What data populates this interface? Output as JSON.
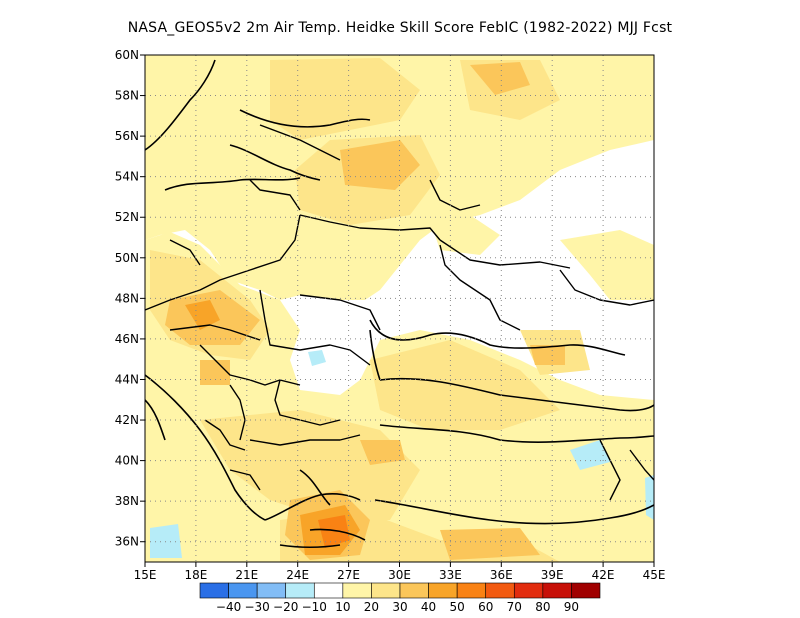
{
  "title": "NASA_GEOS5v2  2m Air Temp. Heidke Skill Score FebIC (1982-2022) MJJ Fcst",
  "map": {
    "lon_range": [
      15,
      45
    ],
    "lat_range": [
      35,
      60
    ],
    "x_ticks": [
      "15E",
      "18E",
      "21E",
      "24E",
      "27E",
      "30E",
      "33E",
      "36E",
      "39E",
      "42E",
      "45E"
    ],
    "y_ticks": [
      "36N",
      "38N",
      "40N",
      "42N",
      "44N",
      "46N",
      "48N",
      "50N",
      "52N",
      "54N",
      "56N",
      "58N",
      "60N"
    ],
    "grid": "dotted"
  },
  "colorbar": {
    "colors": [
      "#2a6fe6",
      "#4a96f0",
      "#82bdf6",
      "#b6ecf8",
      "#ffffff",
      "#fff5a8",
      "#fde58a",
      "#fbc65a",
      "#f8a428",
      "#f98214",
      "#f25a10",
      "#e22c0e",
      "#c71008",
      "#a00000"
    ],
    "labels": [
      "-40",
      "-30",
      "-20",
      "-10",
      "10",
      "20",
      "30",
      "40",
      "50",
      "60",
      "70",
      "80",
      "90"
    ]
  },
  "features": {
    "coastline": "coastline",
    "borders": "country-borders"
  }
}
